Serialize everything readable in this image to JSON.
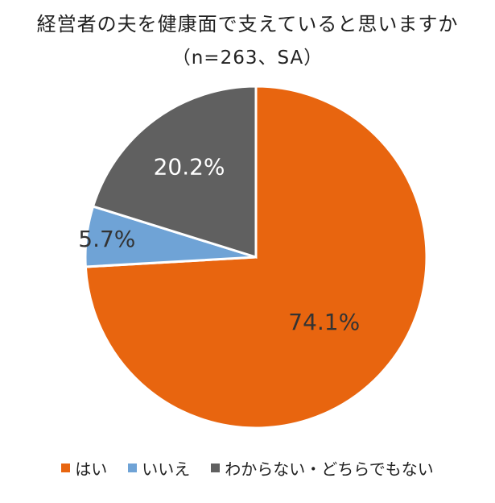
{
  "chart_data": {
    "type": "pie",
    "title": "経営者の夫を健康面で支えていると思いますか",
    "subtitle": "（n=263、SA）",
    "categories": [
      "はい",
      "いいえ",
      "わからない・どちらでもない"
    ],
    "values": [
      74.1,
      5.7,
      20.2
    ],
    "labels": [
      "74.1%",
      "5.7%",
      "20.2%"
    ],
    "colors": [
      "#E8650F",
      "#6FA3D6",
      "#606060"
    ],
    "label_colors": [
      "#333333",
      "#333333",
      "#ffffff"
    ],
    "legend_position": "bottom",
    "start_angle": "12 o'clock",
    "direction": "clockwise"
  }
}
